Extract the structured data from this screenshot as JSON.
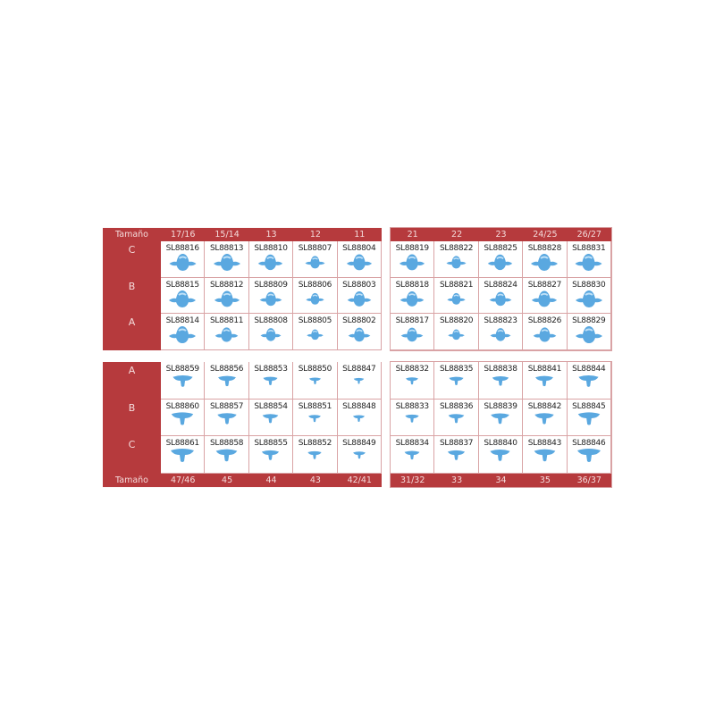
{
  "size_label": "Tamaño",
  "colors": {
    "header": "#b63a3d",
    "tooth": "#5aa8e0"
  },
  "tables": [
    {
      "id": "upper-left",
      "sizes": [
        "17/16",
        "15/14",
        "13",
        "12",
        "11"
      ],
      "rows": [
        "C",
        "B",
        "A"
      ],
      "codes": [
        [
          "SL88816",
          "SL88813",
          "SL88810",
          "SL88807",
          "SL88804"
        ],
        [
          "SL88815",
          "SL88812",
          "SL88809",
          "SL88806",
          "SL88803"
        ],
        [
          "SL88814",
          "SL88811",
          "SL88808",
          "SL88805",
          "SL88802"
        ]
      ]
    },
    {
      "id": "upper-right",
      "sizes": [
        "21",
        "22",
        "23",
        "24/25",
        "26/27"
      ],
      "rows": [],
      "codes": [
        [
          "SL88819",
          "SL88822",
          "SL88825",
          "SL88828",
          "SL88831"
        ],
        [
          "SL88818",
          "SL88821",
          "SL88824",
          "SL88827",
          "SL88830"
        ],
        [
          "SL88817",
          "SL88820",
          "SL88823",
          "SL88826",
          "SL88829"
        ]
      ]
    },
    {
      "id": "lower-left",
      "sizes": [
        "47/46",
        "45",
        "44",
        "43",
        "42/41"
      ],
      "rows": [
        "A",
        "B",
        "C"
      ],
      "codes": [
        [
          "SL88859",
          "SL88856",
          "SL88853",
          "SL88850",
          "SL88847"
        ],
        [
          "SL88860",
          "SL88857",
          "SL88854",
          "SL88851",
          "SL88848"
        ],
        [
          "SL88861",
          "SL88858",
          "SL88855",
          "SL88852",
          "SL88849"
        ]
      ]
    },
    {
      "id": "lower-right",
      "sizes": [
        "31/32",
        "33",
        "34",
        "35",
        "36/37"
      ],
      "rows": [],
      "codes": [
        [
          "SL88832",
          "SL88835",
          "SL88838",
          "SL88841",
          "SL88844"
        ],
        [
          "SL88833",
          "SL88836",
          "SL88839",
          "SL88842",
          "SL88845"
        ],
        [
          "SL88834",
          "SL88837",
          "SL88840",
          "SL88843",
          "SL88846"
        ]
      ]
    }
  ]
}
